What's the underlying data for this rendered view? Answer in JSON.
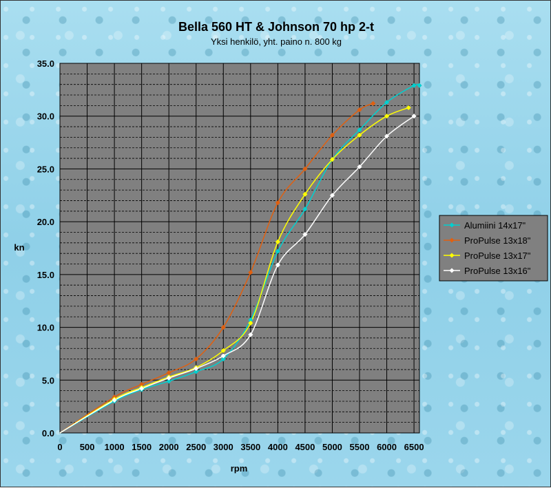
{
  "chart_data": {
    "type": "line",
    "title": "Bella 560 HT & Johnson 70 hp 2-t",
    "subtitle": "Yksi henkilö, yht. paino n. 800 kg",
    "xlabel": "rpm",
    "ylabel": "kn",
    "xlim": [
      0,
      6600
    ],
    "ylim": [
      0,
      35
    ],
    "x_ticks": [
      "0",
      "500",
      "1000",
      "1500",
      "2000",
      "2500",
      "3000",
      "3500",
      "4000",
      "4500",
      "5000",
      "5500",
      "6000",
      "6500"
    ],
    "y_ticks": [
      "0.0",
      "5.0",
      "10.0",
      "15.0",
      "20.0",
      "25.0",
      "30.0",
      "35.0"
    ],
    "grid": true,
    "legend_position": "right",
    "plot_background": "#808080",
    "series": [
      {
        "name": "Alumiini    14x17\"",
        "color": "#00d0d0",
        "points": [
          [
            0,
            0
          ],
          [
            1000,
            3.0
          ],
          [
            1500,
            4.1
          ],
          [
            2000,
            4.9
          ],
          [
            2500,
            5.8
          ],
          [
            3000,
            7.0
          ],
          [
            3500,
            10.7
          ],
          [
            4000,
            17.2
          ],
          [
            4500,
            21.2
          ],
          [
            5000,
            25.9
          ],
          [
            5500,
            28.7
          ],
          [
            6000,
            31.3
          ],
          [
            6500,
            32.9
          ],
          [
            6600,
            32.9
          ]
        ]
      },
      {
        "name": "ProPulse 13x18\"",
        "color": "#e06010",
        "points": [
          [
            0,
            0
          ],
          [
            1000,
            3.4
          ],
          [
            1500,
            4.6
          ],
          [
            2000,
            5.7
          ],
          [
            2500,
            7.0
          ],
          [
            3000,
            10.0
          ],
          [
            3500,
            15.2
          ],
          [
            4000,
            21.8
          ],
          [
            4500,
            25.0
          ],
          [
            5000,
            28.2
          ],
          [
            5500,
            30.6
          ],
          [
            5750,
            31.2
          ]
        ]
      },
      {
        "name": "ProPulse 13x17\"",
        "color": "#ffff00",
        "points": [
          [
            0,
            0
          ],
          [
            1000,
            3.2
          ],
          [
            1500,
            4.3
          ],
          [
            2000,
            5.3
          ],
          [
            2500,
            6.2
          ],
          [
            3000,
            7.8
          ],
          [
            3500,
            10.4
          ],
          [
            4000,
            18.1
          ],
          [
            4500,
            22.6
          ],
          [
            5000,
            25.9
          ],
          [
            5500,
            28.2
          ],
          [
            6000,
            30.0
          ],
          [
            6400,
            30.8
          ]
        ]
      },
      {
        "name": "ProPulse 13x16\"",
        "color": "#ffffff",
        "points": [
          [
            0,
            0
          ],
          [
            1000,
            3.1
          ],
          [
            1500,
            4.2
          ],
          [
            2000,
            5.2
          ],
          [
            2500,
            6.1
          ],
          [
            3000,
            7.3
          ],
          [
            3500,
            9.3
          ],
          [
            4000,
            15.9
          ],
          [
            4500,
            18.8
          ],
          [
            5000,
            22.5
          ],
          [
            5500,
            25.2
          ],
          [
            6000,
            28.1
          ],
          [
            6500,
            30.0
          ]
        ]
      }
    ]
  }
}
